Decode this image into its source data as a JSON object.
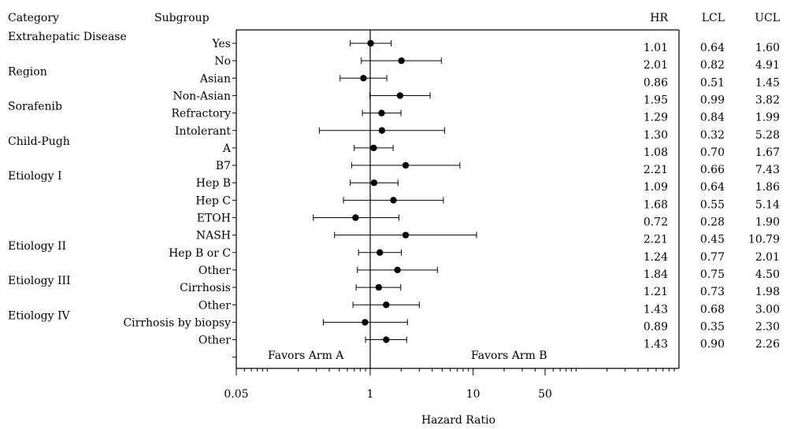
{
  "chart_data": {
    "type": "forest",
    "xlabel": "Hazard Ratio",
    "x_scale": "log",
    "xlim": [
      0.05,
      1000
    ],
    "x_ticks": [
      0.05,
      1,
      10,
      50
    ],
    "x_tick_labels": [
      "0.05",
      "1",
      "10",
      "50"
    ],
    "reference_line": 1,
    "favors_left": "Favors Arm A",
    "favors_right": "Favors Arm B",
    "column_headers": {
      "category": "Category",
      "subgroup": "Subgroup",
      "hr": "HR",
      "lcl": "LCL",
      "ucl": "UCL"
    },
    "categories": [
      {
        "label": "Extrahepatic Disease",
        "row": 0
      },
      {
        "label": "Region",
        "row": 2
      },
      {
        "label": "Sorafenib",
        "row": 4
      },
      {
        "label": "Child-Pugh",
        "row": 6
      },
      {
        "label": "Etiology I",
        "row": 8
      },
      {
        "label": "Etiology II",
        "row": 12
      },
      {
        "label": "Etiology III",
        "row": 14
      },
      {
        "label": "Etiology IV",
        "row": 16
      }
    ],
    "rows": [
      {
        "subgroup": "Yes",
        "hr": 1.01,
        "lcl": 0.64,
        "ucl": 1.6,
        "hr_text": "1.01",
        "lcl_text": "0.64",
        "ucl_text": "1.60"
      },
      {
        "subgroup": "No",
        "hr": 2.01,
        "lcl": 0.82,
        "ucl": 4.91,
        "hr_text": "2.01",
        "lcl_text": "0.82",
        "ucl_text": "4.91"
      },
      {
        "subgroup": "Asian",
        "hr": 0.86,
        "lcl": 0.51,
        "ucl": 1.45,
        "hr_text": "0.86",
        "lcl_text": "0.51",
        "ucl_text": "1.45"
      },
      {
        "subgroup": "Non-Asian",
        "hr": 1.95,
        "lcl": 0.99,
        "ucl": 3.82,
        "hr_text": "1.95",
        "lcl_text": "0.99",
        "ucl_text": "3.82"
      },
      {
        "subgroup": "Refractory",
        "hr": 1.29,
        "lcl": 0.84,
        "ucl": 1.99,
        "hr_text": "1.29",
        "lcl_text": "0.84",
        "ucl_text": "1.99"
      },
      {
        "subgroup": "Intolerant",
        "hr": 1.3,
        "lcl": 0.32,
        "ucl": 5.28,
        "hr_text": "1.30",
        "lcl_text": "0.32",
        "ucl_text": "5.28"
      },
      {
        "subgroup": "A",
        "hr": 1.08,
        "lcl": 0.7,
        "ucl": 1.67,
        "hr_text": "1.08",
        "lcl_text": "0.70",
        "ucl_text": "1.67"
      },
      {
        "subgroup": "B7",
        "hr": 2.21,
        "lcl": 0.66,
        "ucl": 7.43,
        "hr_text": "2.21",
        "lcl_text": "0.66",
        "ucl_text": "7.43"
      },
      {
        "subgroup": "Hep B",
        "hr": 1.09,
        "lcl": 0.64,
        "ucl": 1.86,
        "hr_text": "1.09",
        "lcl_text": "0.64",
        "ucl_text": "1.86"
      },
      {
        "subgroup": "Hep C",
        "hr": 1.68,
        "lcl": 0.55,
        "ucl": 5.14,
        "hr_text": "1.68",
        "lcl_text": "0.55",
        "ucl_text": "5.14"
      },
      {
        "subgroup": "ETOH",
        "hr": 0.72,
        "lcl": 0.28,
        "ucl": 1.9,
        "hr_text": "0.72",
        "lcl_text": "0.28",
        "ucl_text": "1.90"
      },
      {
        "subgroup": "NASH",
        "hr": 2.21,
        "lcl": 0.45,
        "ucl": 10.79,
        "hr_text": "2.21",
        "lcl_text": "0.45",
        "ucl_text": "10.79"
      },
      {
        "subgroup": "Hep B or C",
        "hr": 1.24,
        "lcl": 0.77,
        "ucl": 2.01,
        "hr_text": "1.24",
        "lcl_text": "0.77",
        "ucl_text": "2.01"
      },
      {
        "subgroup": "Other",
        "hr": 1.84,
        "lcl": 0.75,
        "ucl": 4.5,
        "hr_text": "1.84",
        "lcl_text": "0.75",
        "ucl_text": "4.50"
      },
      {
        "subgroup": "Cirrhosis",
        "hr": 1.21,
        "lcl": 0.73,
        "ucl": 1.98,
        "hr_text": "1.21",
        "lcl_text": "0.73",
        "ucl_text": "1.98"
      },
      {
        "subgroup": "Other",
        "hr": 1.43,
        "lcl": 0.68,
        "ucl": 3.0,
        "hr_text": "1.43",
        "lcl_text": "0.68",
        "ucl_text": "3.00"
      },
      {
        "subgroup": "Cirrhosis by biopsy",
        "hr": 0.89,
        "lcl": 0.35,
        "ucl": 2.3,
        "hr_text": "0.89",
        "lcl_text": "0.35",
        "ucl_text": "2.30"
      },
      {
        "subgroup": "Other",
        "hr": 1.43,
        "lcl": 0.9,
        "ucl": 2.26,
        "hr_text": "1.43",
        "lcl_text": "0.90",
        "ucl_text": "2.26"
      }
    ]
  }
}
